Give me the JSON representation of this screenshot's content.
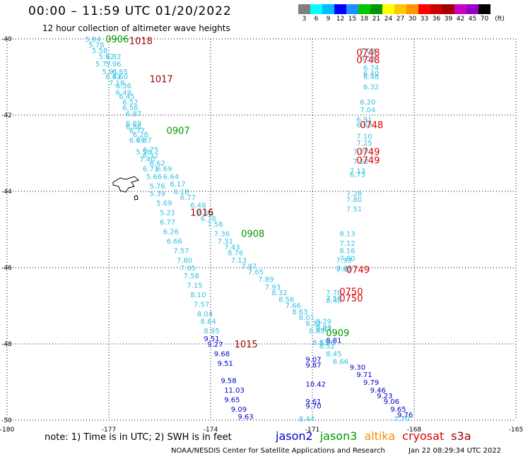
{
  "header": {
    "title": "00:00 – 11:59 UTC 01/20/2022",
    "subtitle": "12 hour collection of altimeter wave heights"
  },
  "colorbar": {
    "colors": [
      "#7f7f7f",
      "#00ffff",
      "#00bfff",
      "#0000ff",
      "#1e90ff",
      "#00c800",
      "#009600",
      "#ffff00",
      "#ffc800",
      "#ff9600",
      "#ff0000",
      "#c80000",
      "#a00000",
      "#c800c8",
      "#9600c8",
      "#000000"
    ],
    "labels": [
      "3",
      "6",
      "9",
      "12",
      "15",
      "18",
      "21",
      "24",
      "27",
      "30",
      "33",
      "36",
      "39",
      "42",
      "45",
      "70"
    ],
    "unit": "(ft)"
  },
  "axes": {
    "x_ticks": [
      "-180",
      "-177",
      "-174",
      "-171",
      "-168",
      "-165"
    ],
    "y_ticks": [
      "-40",
      "-42",
      "-44",
      "-46",
      "-48",
      "-50"
    ]
  },
  "footer": {
    "note": "note:  1) Time is in UTC;  2) SWH is in feet",
    "satellites": [
      {
        "name": "jason2",
        "color": "#0000cc"
      },
      {
        "name": "jason3",
        "color": "#009900"
      },
      {
        "name": "altika",
        "color": "#ff8800"
      },
      {
        "name": "cryosat",
        "color": "#dd0000"
      },
      {
        "name": "s3a",
        "color": "#990000"
      }
    ],
    "credit": "NOAA/NESDIS Center for Satellite Applications and Research",
    "timestamp": "Jan 22 08:29:34 UTC 2022"
  },
  "map_data": {
    "bounds": {
      "lon_min": -180,
      "lon_max": -165,
      "lat_min": -50,
      "lat_max": -40
    },
    "track_labels": [
      {
        "text": "0906",
        "lon": -177.1,
        "lat": -40.0,
        "color": "#009900"
      },
      {
        "text": "1018",
        "lon": -176.4,
        "lat": -40.05,
        "color": "#990000"
      },
      {
        "text": "1017",
        "lon": -175.8,
        "lat": -41.05,
        "color": "#990000"
      },
      {
        "text": "0907",
        "lon": -175.3,
        "lat": -42.4,
        "color": "#009900"
      },
      {
        "text": "1016",
        "lon": -174.6,
        "lat": -44.55,
        "color": "#990000"
      },
      {
        "text": "0908",
        "lon": -173.1,
        "lat": -45.1,
        "color": "#009900"
      },
      {
        "text": "1015",
        "lon": -173.3,
        "lat": -48.0,
        "color": "#990000"
      },
      {
        "text": "0909",
        "lon": -170.6,
        "lat": -47.7,
        "color": "#009900"
      },
      {
        "text": "0748",
        "lon": -169.7,
        "lat": -40.35,
        "color": "#dd0000"
      },
      {
        "text": "0748",
        "lon": -169.7,
        "lat": -40.55,
        "color": "#dd0000"
      },
      {
        "text": "0748",
        "lon": -169.6,
        "lat": -42.25,
        "color": "#dd0000"
      },
      {
        "text": "0749",
        "lon": -169.7,
        "lat": -42.95,
        "color": "#dd0000"
      },
      {
        "text": "0749",
        "lon": -169.7,
        "lat": -43.18,
        "color": "#dd0000"
      },
      {
        "text": "0749",
        "lon": -170.0,
        "lat": -46.05,
        "color": "#dd0000"
      },
      {
        "text": "0750",
        "lon": -170.2,
        "lat": -46.62,
        "color": "#dd0000"
      },
      {
        "text": "0750",
        "lon": -170.2,
        "lat": -46.8,
        "color": "#dd0000"
      }
    ],
    "track_a": {
      "color": "#33c0e0",
      "points": [
        [
          "5.84",
          -177.7,
          -40.0
        ],
        [
          "5.78",
          -177.6,
          -40.15
        ],
        [
          "5.58",
          -177.5,
          -40.3
        ],
        [
          "5.92",
          -177.3,
          -40.45
        ],
        [
          "6.32",
          -177.1,
          -40.45
        ],
        [
          "5.77",
          -177.4,
          -40.65
        ],
        [
          "5.96",
          -177.1,
          -40.65
        ],
        [
          "5.91",
          -177.2,
          -40.85
        ],
        [
          "6.65",
          -176.9,
          -40.85
        ],
        [
          "6.41",
          -177.1,
          -40.98
        ],
        [
          "6.60",
          -176.9,
          -40.98
        ],
        [
          "7.18",
          -177.0,
          -41.15
        ],
        [
          "6.36",
          -176.8,
          -41.22
        ],
        [
          "6.49",
          -176.8,
          -41.4
        ],
        [
          "6.45",
          -176.7,
          -41.5
        ],
        [
          "6.52",
          -176.6,
          -41.65
        ],
        [
          "6.56",
          -176.6,
          -41.8
        ],
        [
          "6.87",
          -176.5,
          -41.95
        ],
        [
          "6.69",
          -176.5,
          -42.2
        ],
        [
          "6.86",
          -176.5,
          -42.3
        ],
        [
          "6.77",
          -176.4,
          -42.4
        ],
        [
          "6.28",
          -176.3,
          -42.5
        ],
        [
          "6.79",
          -176.4,
          -42.65
        ],
        [
          "6.87",
          -176.2,
          -42.65
        ],
        [
          "6.75",
          -176.0,
          -42.9
        ],
        [
          "5.98",
          -176.2,
          -42.95
        ],
        [
          "6.32",
          -176.0,
          -43.05
        ],
        [
          "7.40",
          -176.1,
          -43.15
        ],
        [
          "6.62",
          -175.8,
          -43.25
        ],
        [
          "6.71",
          -176.0,
          -43.4
        ],
        [
          "6.69",
          -175.6,
          -43.4
        ],
        [
          "5.66",
          -175.9,
          -43.6
        ],
        [
          "6.64",
          -175.4,
          -43.6
        ],
        [
          "5.76",
          -175.8,
          -43.85
        ],
        [
          "6.17",
          -175.2,
          -43.8
        ],
        [
          "5.39",
          -175.8,
          -44.05
        ],
        [
          "6.18",
          -175.1,
          -44.0
        ],
        [
          "6.77",
          -174.9,
          -44.15
        ],
        [
          "5.69",
          -175.6,
          -44.3
        ],
        [
          "6.48",
          -174.6,
          -44.35
        ],
        [
          "5.21",
          -175.5,
          -44.55
        ],
        [
          "6.56",
          -174.4,
          -44.55
        ],
        [
          "6.76",
          -174.3,
          -44.7
        ],
        [
          "6.77",
          -175.5,
          -44.8
        ],
        [
          "7.58",
          -174.1,
          -44.85
        ],
        [
          "6.26",
          -175.4,
          -45.05
        ],
        [
          "7.36",
          -173.9,
          -45.1
        ],
        [
          "6.66",
          -175.3,
          -45.3
        ],
        [
          "7.31",
          -173.8,
          -45.3
        ],
        [
          "7.43",
          -173.6,
          -45.45
        ],
        [
          "7.57",
          -175.1,
          -45.55
        ],
        [
          "8.76",
          -173.5,
          -45.6
        ],
        [
          "7.80",
          -175.0,
          -45.8
        ],
        [
          "7.13",
          -173.4,
          -45.8
        ],
        [
          "7.87",
          -173.1,
          -45.95
        ],
        [
          "7.65",
          -174.9,
          -46.0
        ],
        [
          "7.65",
          -172.9,
          -46.1
        ],
        [
          "7.58",
          -174.8,
          -46.2
        ],
        [
          "7.89",
          -172.6,
          -46.3
        ],
        [
          "7.15",
          -174.7,
          -46.45
        ],
        [
          "7.93",
          -172.4,
          -46.5
        ],
        [
          "8.10",
          -174.6,
          -46.7
        ],
        [
          "8.32",
          -172.2,
          -46.65
        ],
        [
          "8.56",
          -172.0,
          -46.82
        ],
        [
          "7.57",
          -174.5,
          -46.95
        ],
        [
          "7.66",
          -171.8,
          -46.98
        ],
        [
          "8.04",
          -174.4,
          -47.2
        ],
        [
          "8.63",
          -171.6,
          -47.15
        ],
        [
          "8.01",
          -171.4,
          -47.3
        ],
        [
          "8.64",
          -174.3,
          -47.4
        ],
        [
          "8.32",
          -171.2,
          -47.45
        ],
        [
          "8.95",
          -174.2,
          -47.65
        ],
        [
          "8.65",
          -171.1,
          -47.65
        ],
        [
          "8.50",
          -170.8,
          -47.95
        ],
        [
          "8.52",
          -170.8,
          -48.05
        ],
        [
          "8.45",
          -170.6,
          -48.25
        ],
        [
          "8.66",
          -170.4,
          -48.45
        ],
        [
          "8.44",
          -171.4,
          -49.95
        ],
        [
          "7.70",
          -168.6,
          -49.95
        ]
      ]
    },
    "track_b": {
      "color": "#0000cc",
      "points": [
        [
          "9.51",
          -174.2,
          -47.85
        ],
        [
          "9.27",
          -174.1,
          -48.0
        ],
        [
          "9.68",
          -173.9,
          -48.25
        ],
        [
          "9.51",
          -173.8,
          -48.5
        ],
        [
          "9.58",
          -173.7,
          -48.95
        ],
        [
          "11.03",
          -173.6,
          -49.2
        ],
        [
          "9.65",
          -173.6,
          -49.45
        ],
        [
          "9.09",
          -173.4,
          -49.7
        ],
        [
          "9.63",
          -173.2,
          -49.9
        ],
        [
          "9.30",
          -169.9,
          -48.6
        ],
        [
          "9.71",
          -169.7,
          -48.8
        ],
        [
          "9.79",
          -169.5,
          -49.0
        ],
        [
          "9.46",
          -169.3,
          -49.2
        ],
        [
          "9.23",
          -169.1,
          -49.35
        ],
        [
          "9.06",
          -168.9,
          -49.5
        ],
        [
          "9.65",
          -168.7,
          -49.7
        ],
        [
          "9.76",
          -168.5,
          -49.85
        ],
        [
          "9.07",
          -171.2,
          -48.4
        ],
        [
          "9.87",
          -171.2,
          -48.55
        ],
        [
          "10.42",
          -171.2,
          -49.05
        ],
        [
          "9.61",
          -171.2,
          -49.5
        ],
        [
          "9.70",
          -171.2,
          -49.62
        ],
        [
          "8.81",
          -170.6,
          -47.9
        ]
      ]
    },
    "track_c": {
      "color": "#33c0e0",
      "points": [
        [
          "7.09",
          -169.6,
          -40.3
        ],
        [
          "6.54",
          -169.6,
          -40.5
        ],
        [
          "6.74",
          -169.5,
          -40.75
        ],
        [
          "6.40",
          -169.5,
          -40.9
        ],
        [
          "6.46",
          -169.5,
          -40.98
        ],
        [
          "6.32",
          -169.5,
          -41.25
        ],
        [
          "6.20",
          -169.6,
          -41.65
        ],
        [
          "7.04",
          -169.6,
          -41.85
        ],
        [
          "6.91",
          -169.7,
          -42.1
        ],
        [
          "6.63",
          -169.7,
          -42.25
        ],
        [
          "7.10",
          -169.7,
          -42.55
        ],
        [
          "7.25",
          -169.7,
          -42.72
        ],
        [
          "7.77",
          -169.8,
          -42.95
        ],
        [
          "7.52",
          -169.8,
          -43.2
        ],
        [
          "7.13",
          -169.9,
          -43.45
        ],
        [
          "6.73",
          -169.9,
          -43.55
        ],
        [
          "7.28",
          -170.0,
          -44.05
        ],
        [
          "7.80",
          -170.0,
          -44.2
        ],
        [
          "7.51",
          -170.0,
          -44.45
        ],
        [
          "8.13",
          -170.2,
          -45.1
        ],
        [
          "7.12",
          -170.2,
          -45.35
        ],
        [
          "8.16",
          -170.2,
          -45.55
        ],
        [
          "7.80",
          -170.2,
          -45.75
        ],
        [
          "7.93",
          -170.3,
          -45.8
        ],
        [
          "8.49",
          -170.3,
          -46.0
        ],
        [
          "7.42",
          -170.3,
          -46.05
        ],
        [
          "7.78",
          -170.6,
          -46.65
        ],
        [
          "7.56",
          -170.6,
          -46.8
        ],
        [
          "8.48",
          -170.6,
          -46.85
        ],
        [
          "8.29",
          -170.9,
          -47.4
        ],
        [
          "8.04",
          -170.9,
          -47.55
        ],
        [
          "8.47",
          -170.9,
          -47.6
        ],
        [
          "8.13",
          -171.0,
          -47.95
        ]
      ]
    }
  }
}
